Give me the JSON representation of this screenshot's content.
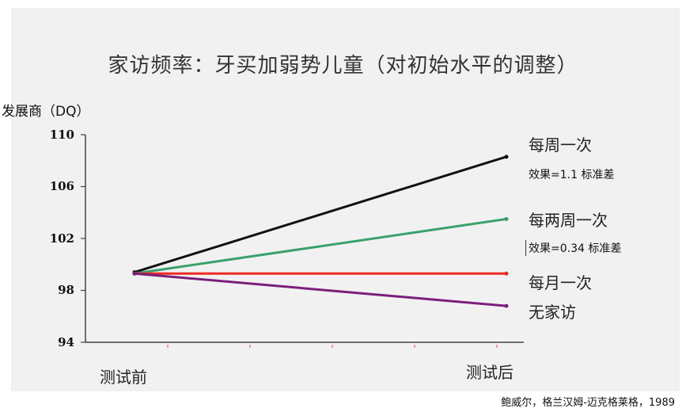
{
  "chart_data": {
    "type": "line",
    "title": "家访频率：牙买加弱势儿童（对初始水平的调整）",
    "ylabel": "发展商（DQ）",
    "xlabel": "",
    "categories": [
      "测试前",
      "测试后"
    ],
    "ylim": [
      94,
      110
    ],
    "yticks": [
      "110",
      "106",
      "102",
      "98",
      "94"
    ],
    "grid": false,
    "series": [
      {
        "name": "每周一次",
        "values": [
          99.4,
          108.3
        ],
        "color": "#111111",
        "effect": "效果=1.1 标准差"
      },
      {
        "name": "每两周一次",
        "values": [
          99.3,
          103.5
        ],
        "color": "#3aa06a",
        "effect": "效果=0.34 标准差"
      },
      {
        "name": "每月一次",
        "values": [
          99.3,
          99.3
        ],
        "color": "#ee2a24",
        "effect": ""
      },
      {
        "name": "无家访",
        "values": [
          99.3,
          96.8
        ],
        "color": "#7a1f7a",
        "effect": ""
      }
    ]
  },
  "source": "鲍威尔，格兰汉姆-迈克格莱格，1989"
}
